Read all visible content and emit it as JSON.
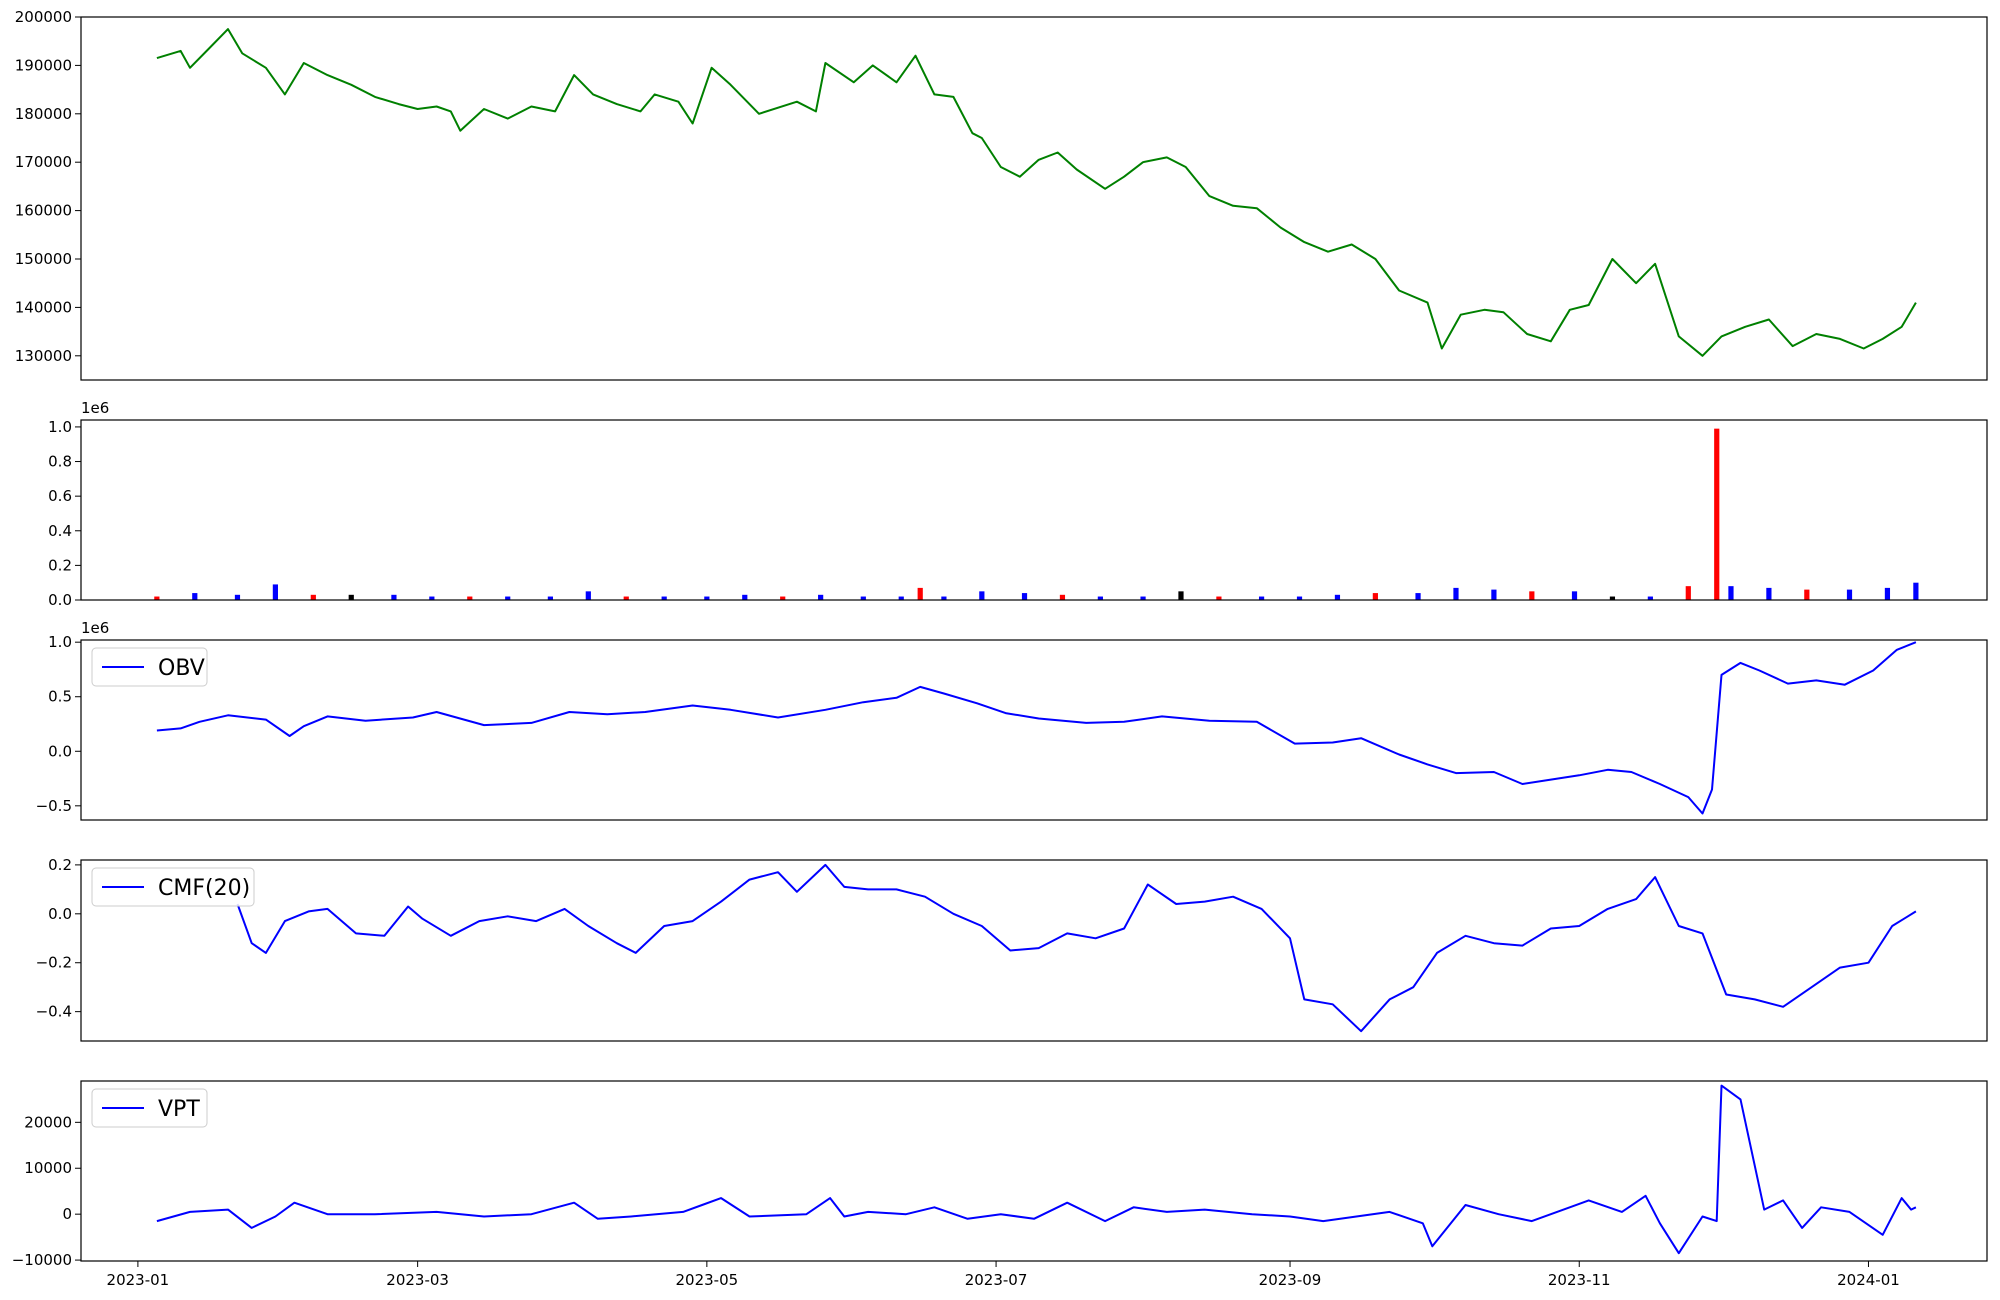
{
  "chart_data": [
    {
      "type": "line",
      "color": "#008000",
      "ylim": [
        125000,
        200000
      ],
      "yticks": [
        130000,
        140000,
        150000,
        160000,
        170000,
        180000,
        190000,
        200000
      ],
      "ytick_labels": [
        "130000",
        "140000",
        "150000",
        "160000",
        "170000",
        "180000",
        "190000",
        "200000"
      ],
      "series": [
        {
          "x": [
            "2023-01-05",
            "2023-01-10",
            "2023-01-12",
            "2023-01-16",
            "2023-01-20",
            "2023-01-23",
            "2023-01-28",
            "2023-02-01",
            "2023-02-05",
            "2023-02-10",
            "2023-02-15",
            "2023-02-20",
            "2023-02-25",
            "2023-03-01",
            "2023-03-05",
            "2023-03-08",
            "2023-03-10",
            "2023-03-15",
            "2023-03-20",
            "2023-03-25",
            "2023-03-30",
            "2023-04-03",
            "2023-04-07",
            "2023-04-12",
            "2023-04-17",
            "2023-04-20",
            "2023-04-25",
            "2023-04-28",
            "2023-05-02",
            "2023-05-06",
            "2023-05-12",
            "2023-05-20",
            "2023-05-24",
            "2023-05-26",
            "2023-06-01",
            "2023-06-05",
            "2023-06-10",
            "2023-06-14",
            "2023-06-18",
            "2023-06-22",
            "2023-06-26",
            "2023-06-28",
            "2023-07-02",
            "2023-07-06",
            "2023-07-10",
            "2023-07-14",
            "2023-07-18",
            "2023-07-24",
            "2023-07-28",
            "2023-08-01",
            "2023-08-06",
            "2023-08-10",
            "2023-08-15",
            "2023-08-20",
            "2023-08-25",
            "2023-08-30",
            "2023-09-04",
            "2023-09-09",
            "2023-09-14",
            "2023-09-19",
            "2023-09-24",
            "2023-09-30",
            "2023-10-03",
            "2023-10-07",
            "2023-10-12",
            "2023-10-16",
            "2023-10-21",
            "2023-10-26",
            "2023-10-30",
            "2023-11-03",
            "2023-11-08",
            "2023-11-13",
            "2023-11-17",
            "2023-11-22",
            "2023-11-27",
            "2023-12-01",
            "2023-12-06",
            "2023-12-11",
            "2023-12-16",
            "2023-12-21",
            "2023-12-26",
            "2023-12-31",
            "2024-01-04",
            "2024-01-08",
            "2024-01-11"
          ],
          "y": [
            191500,
            193000,
            189500,
            193500,
            197500,
            192500,
            189500,
            184000,
            190500,
            188000,
            186000,
            183500,
            182000,
            181000,
            181500,
            180500,
            176500,
            181000,
            179000,
            181500,
            180500,
            188000,
            184000,
            182000,
            180500,
            184000,
            182500,
            178000,
            189500,
            186000,
            180000,
            182500,
            180500,
            190500,
            186500,
            190000,
            186500,
            192000,
            184000,
            183500,
            176000,
            175000,
            169000,
            167000,
            170500,
            172000,
            168500,
            164500,
            167000,
            170000,
            171000,
            169000,
            163000,
            161000,
            160500,
            156500,
            153500,
            151500,
            153000,
            150000,
            143500,
            141000,
            131500,
            138500,
            139500,
            139000,
            134500,
            133000,
            139500,
            140500,
            150000,
            145000,
            149000,
            134000,
            130000,
            134000,
            136000,
            137500,
            132000,
            134500,
            133500,
            131500,
            133500,
            136000,
            141000
          ]
        }
      ]
    },
    {
      "type": "bar",
      "multiplier": "1e6",
      "ylim": [
        0,
        1.04
      ],
      "yticks": [
        0.0,
        0.2,
        0.4,
        0.6,
        0.8,
        1.0
      ],
      "ytick_labels": [
        "0.0",
        "0.2",
        "0.4",
        "0.6",
        "0.8",
        "1.0"
      ],
      "colors": [
        "#ff0000",
        "#0000ff",
        "#000000"
      ],
      "categories": [
        "2023-01-05",
        "2023-01-13",
        "2023-01-22",
        "2023-01-30",
        "2023-02-07",
        "2023-02-15",
        "2023-02-24",
        "2023-03-04",
        "2023-03-12",
        "2023-03-20",
        "2023-03-29",
        "2023-04-06",
        "2023-04-14",
        "2023-04-22",
        "2023-05-01",
        "2023-05-09",
        "2023-05-17",
        "2023-05-25",
        "2023-06-03",
        "2023-06-11",
        "2023-06-15",
        "2023-06-20",
        "2023-06-28",
        "2023-07-07",
        "2023-07-15",
        "2023-07-23",
        "2023-08-01",
        "2023-08-09",
        "2023-08-17",
        "2023-08-26",
        "2023-09-03",
        "2023-09-11",
        "2023-09-19",
        "2023-09-28",
        "2023-10-06",
        "2023-10-14",
        "2023-10-22",
        "2023-10-31",
        "2023-11-08",
        "2023-11-16",
        "2023-11-24",
        "2023-11-30",
        "2023-12-03",
        "2023-12-11",
        "2023-12-19",
        "2023-12-28",
        "2024-01-05",
        "2024-01-11"
      ],
      "values": [
        0.02,
        0.04,
        0.03,
        0.09,
        0.03,
        0.03,
        0.03,
        0.02,
        0.02,
        0.02,
        0.02,
        0.05,
        0.02,
        0.02,
        0.02,
        0.03,
        0.02,
        0.03,
        0.02,
        0.02,
        0.07,
        0.02,
        0.05,
        0.04,
        0.03,
        0.02,
        0.02,
        0.05,
        0.02,
        0.02,
        0.02,
        0.03,
        0.04,
        0.04,
        0.07,
        0.06,
        0.05,
        0.05,
        0.02,
        0.02,
        0.08,
        0.99,
        0.08,
        0.07,
        0.06,
        0.06,
        0.07,
        0.1
      ]
    },
    {
      "type": "line",
      "multiplier": "1e6",
      "ylim": [
        -0.63,
        1.02
      ],
      "yticks": [
        -0.5,
        0.0,
        0.5,
        1.0
      ],
      "ytick_labels": [
        "−0.5",
        "0.0",
        "0.5",
        "1.0"
      ],
      "legend": "top-left",
      "series": [
        {
          "name": "OBV",
          "color": "#0000ff",
          "x": [
            "2023-01-05",
            "2023-01-10",
            "2023-01-14",
            "2023-01-20",
            "2023-01-28",
            "2023-02-02",
            "2023-02-05",
            "2023-02-10",
            "2023-02-18",
            "2023-02-28",
            "2023-03-05",
            "2023-03-15",
            "2023-03-25",
            "2023-04-02",
            "2023-04-10",
            "2023-04-18",
            "2023-04-28",
            "2023-05-06",
            "2023-05-16",
            "2023-05-26",
            "2023-06-03",
            "2023-06-10",
            "2023-06-15",
            "2023-06-20",
            "2023-06-27",
            "2023-07-03",
            "2023-07-10",
            "2023-07-20",
            "2023-07-28",
            "2023-08-05",
            "2023-08-15",
            "2023-08-25",
            "2023-09-02",
            "2023-09-10",
            "2023-09-16",
            "2023-09-24",
            "2023-09-30",
            "2023-10-06",
            "2023-10-14",
            "2023-10-20",
            "2023-10-26",
            "2023-11-01",
            "2023-11-07",
            "2023-11-12",
            "2023-11-18",
            "2023-11-24",
            "2023-11-27",
            "2023-11-29",
            "2023-12-01",
            "2023-12-05",
            "2023-12-09",
            "2023-12-15",
            "2023-12-21",
            "2023-12-27",
            "2024-01-02",
            "2024-01-07",
            "2024-01-11"
          ],
          "y": [
            0.19,
            0.21,
            0.27,
            0.33,
            0.29,
            0.14,
            0.23,
            0.32,
            0.28,
            0.31,
            0.36,
            0.24,
            0.26,
            0.36,
            0.34,
            0.36,
            0.42,
            0.38,
            0.31,
            0.38,
            0.45,
            0.49,
            0.59,
            0.53,
            0.44,
            0.35,
            0.3,
            0.26,
            0.27,
            0.32,
            0.28,
            0.27,
            0.07,
            0.08,
            0.12,
            -0.03,
            -0.12,
            -0.2,
            -0.19,
            -0.3,
            -0.26,
            -0.22,
            -0.17,
            -0.19,
            -0.3,
            -0.42,
            -0.57,
            -0.35,
            0.7,
            0.81,
            0.74,
            0.62,
            0.65,
            0.61,
            0.74,
            0.93,
            1.0
          ]
        }
      ]
    },
    {
      "type": "line",
      "ylim": [
        -0.52,
        0.22
      ],
      "yticks": [
        -0.4,
        -0.2,
        0.0,
        0.2
      ],
      "ytick_labels": [
        "−0.4",
        "−0.2",
        "0.0",
        "0.2"
      ],
      "legend": "top-left",
      "series": [
        {
          "name": "CMF(20)",
          "color": "#0000ff",
          "x": [
            "2023-01-22",
            "2023-01-25",
            "2023-01-28",
            "2023-02-01",
            "2023-02-06",
            "2023-02-10",
            "2023-02-16",
            "2023-02-22",
            "2023-02-27",
            "2023-03-02",
            "2023-03-08",
            "2023-03-14",
            "2023-03-20",
            "2023-03-26",
            "2023-04-01",
            "2023-04-06",
            "2023-04-12",
            "2023-04-16",
            "2023-04-22",
            "2023-04-28",
            "2023-05-04",
            "2023-05-10",
            "2023-05-16",
            "2023-05-20",
            "2023-05-26",
            "2023-05-30",
            "2023-06-04",
            "2023-06-10",
            "2023-06-16",
            "2023-06-22",
            "2023-06-28",
            "2023-07-04",
            "2023-07-10",
            "2023-07-16",
            "2023-07-22",
            "2023-07-28",
            "2023-08-02",
            "2023-08-08",
            "2023-08-14",
            "2023-08-20",
            "2023-08-26",
            "2023-09-01",
            "2023-09-04",
            "2023-09-10",
            "2023-09-16",
            "2023-09-22",
            "2023-09-27",
            "2023-10-02",
            "2023-10-08",
            "2023-10-14",
            "2023-10-20",
            "2023-10-26",
            "2023-11-01",
            "2023-11-07",
            "2023-11-13",
            "2023-11-17",
            "2023-11-22",
            "2023-11-27",
            "2023-12-02",
            "2023-12-08",
            "2023-12-14",
            "2023-12-20",
            "2023-12-26",
            "2024-01-01",
            "2024-01-06",
            "2024-01-11"
          ],
          "y": [
            0.04,
            -0.12,
            -0.16,
            -0.03,
            0.01,
            0.02,
            -0.08,
            -0.09,
            0.03,
            -0.02,
            -0.09,
            -0.03,
            -0.01,
            -0.03,
            0.02,
            -0.05,
            -0.12,
            -0.16,
            -0.05,
            -0.03,
            0.05,
            0.14,
            0.17,
            0.09,
            0.2,
            0.11,
            0.1,
            0.1,
            0.07,
            0.0,
            -0.05,
            -0.15,
            -0.14,
            -0.08,
            -0.1,
            -0.06,
            0.12,
            0.04,
            0.05,
            0.07,
            0.02,
            -0.1,
            -0.35,
            -0.37,
            -0.48,
            -0.35,
            -0.3,
            -0.16,
            -0.09,
            -0.12,
            -0.13,
            -0.06,
            -0.05,
            0.02,
            0.06,
            0.15,
            -0.05,
            -0.08,
            -0.33,
            -0.35,
            -0.38,
            -0.3,
            -0.22,
            -0.2,
            -0.05,
            0.01
          ]
        }
      ]
    },
    {
      "type": "line",
      "ylim": [
        -10200,
        29000
      ],
      "yticks": [
        -10000,
        0,
        10000,
        20000
      ],
      "ytick_labels": [
        "−10000",
        "0",
        "10000",
        "20000"
      ],
      "legend": "top-left",
      "xlim": [
        "2022-12-20",
        "2024-01-26"
      ],
      "xticks": [
        "2023-01-01",
        "2023-03-01",
        "2023-05-01",
        "2023-07-01",
        "2023-09-01",
        "2023-11-01",
        "2024-01-01"
      ],
      "xtick_labels": [
        "2023-01",
        "2023-03",
        "2023-05",
        "2023-07",
        "2023-09",
        "2023-11",
        "2024-01"
      ],
      "series": [
        {
          "name": "VPT",
          "color": "#0000ff",
          "x": [
            "2023-01-05",
            "2023-01-12",
            "2023-01-20",
            "2023-01-25",
            "2023-01-30",
            "2023-02-03",
            "2023-02-10",
            "2023-02-20",
            "2023-03-05",
            "2023-03-15",
            "2023-03-25",
            "2023-04-03",
            "2023-04-08",
            "2023-04-15",
            "2023-04-26",
            "2023-04-30",
            "2023-05-04",
            "2023-05-10",
            "2023-05-22",
            "2023-05-27",
            "2023-05-30",
            "2023-06-04",
            "2023-06-12",
            "2023-06-18",
            "2023-06-25",
            "2023-07-02",
            "2023-07-09",
            "2023-07-16",
            "2023-07-24",
            "2023-07-30",
            "2023-08-06",
            "2023-08-14",
            "2023-08-24",
            "2023-09-01",
            "2023-09-08",
            "2023-09-15",
            "2023-09-22",
            "2023-09-29",
            "2023-10-01",
            "2023-10-08",
            "2023-10-15",
            "2023-10-22",
            "2023-10-30",
            "2023-11-03",
            "2023-11-10",
            "2023-11-15",
            "2023-11-18",
            "2023-11-22",
            "2023-11-27",
            "2023-11-30",
            "2023-12-01",
            "2023-12-05",
            "2023-12-10",
            "2023-12-14",
            "2023-12-18",
            "2023-12-22",
            "2023-12-28",
            "2024-01-04",
            "2024-01-08",
            "2024-01-10",
            "2024-01-11"
          ],
          "y": [
            -1500,
            500,
            1000,
            -3000,
            -500,
            2500,
            0,
            0,
            500,
            -500,
            0,
            2500,
            -1000,
            -500,
            500,
            2000,
            3500,
            -500,
            0,
            3500,
            -500,
            500,
            0,
            1500,
            -1000,
            0,
            -1000,
            2500,
            -1500,
            1500,
            500,
            1000,
            0,
            -500,
            -1500,
            -500,
            500,
            -2000,
            -7000,
            2000,
            0,
            -1500,
            1500,
            3000,
            500,
            4000,
            -2000,
            -8500,
            -500,
            -1500,
            28000,
            25000,
            1000,
            3000,
            -3000,
            1500,
            500,
            -4500,
            3500,
            1000,
            1500
          ]
        }
      ]
    }
  ]
}
